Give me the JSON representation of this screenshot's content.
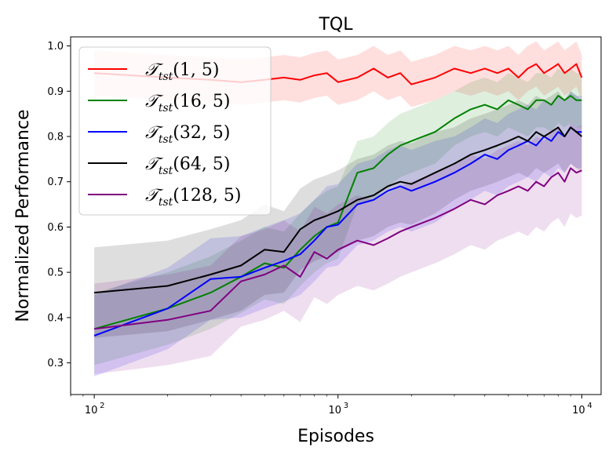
{
  "chart_data": {
    "type": "line",
    "title": "TQL",
    "xlabel": "Episodes",
    "ylabel": "Normalized Performance",
    "xscale": "log",
    "xlim": [
      80,
      12000
    ],
    "ylim": [
      0.23,
      1.02
    ],
    "yticks": [
      0.3,
      0.4,
      0.5,
      0.6,
      0.7,
      0.8,
      0.9,
      1.0
    ],
    "ytick_labels": [
      "0.3",
      "0.4",
      "0.5",
      "0.6",
      "0.7",
      "0.8",
      "0.9",
      "1.0"
    ],
    "xticks": [
      {
        "value": 100,
        "base": "10",
        "exp": "2"
      },
      {
        "value": 1000,
        "base": "10",
        "exp": "3"
      },
      {
        "value": 10000,
        "base": "10",
        "exp": "4"
      }
    ],
    "legend_position": "top-left",
    "x": [
      100,
      200,
      300,
      400,
      500,
      600,
      700,
      800,
      900,
      1000,
      1200,
      1400,
      1600,
      1800,
      2000,
      2500,
      3000,
      3500,
      4000,
      4500,
      5000,
      5500,
      6000,
      6500,
      7000,
      7500,
      8000,
      8500,
      9000,
      9500,
      10000
    ],
    "series": [
      {
        "name": "T_tst(1,5)",
        "label_main": "𝒯",
        "label_sub": "tst",
        "label_args": "(1, 5)",
        "color": "#ff0000",
        "values": [
          0.94,
          0.93,
          0.925,
          0.92,
          0.925,
          0.93,
          0.925,
          0.935,
          0.94,
          0.92,
          0.93,
          0.95,
          0.93,
          0.94,
          0.915,
          0.93,
          0.95,
          0.94,
          0.95,
          0.94,
          0.95,
          0.93,
          0.95,
          0.96,
          0.94,
          0.95,
          0.96,
          0.94,
          0.95,
          0.96,
          0.93
        ],
        "band": [
          0.05,
          0.05,
          0.05,
          0.05,
          0.05,
          0.05,
          0.05,
          0.05,
          0.05,
          0.05,
          0.05,
          0.05,
          0.05,
          0.05,
          0.05,
          0.05,
          0.05,
          0.05,
          0.05,
          0.05,
          0.05,
          0.05,
          0.05,
          0.05,
          0.05,
          0.05,
          0.05,
          0.05,
          0.05,
          0.05,
          0.05
        ]
      },
      {
        "name": "T_tst(16,5)",
        "label_main": "𝒯",
        "label_sub": "tst",
        "label_args": "(16, 5)",
        "color": "#008000",
        "values": [
          0.375,
          0.42,
          0.455,
          0.49,
          0.52,
          0.51,
          0.55,
          0.58,
          0.6,
          0.61,
          0.72,
          0.73,
          0.76,
          0.78,
          0.79,
          0.81,
          0.84,
          0.86,
          0.87,
          0.86,
          0.88,
          0.87,
          0.86,
          0.88,
          0.88,
          0.87,
          0.89,
          0.88,
          0.89,
          0.88,
          0.88
        ],
        "band": [
          0.08,
          0.08,
          0.08,
          0.08,
          0.08,
          0.08,
          0.08,
          0.08,
          0.08,
          0.08,
          0.07,
          0.07,
          0.07,
          0.07,
          0.07,
          0.07,
          0.06,
          0.06,
          0.06,
          0.06,
          0.06,
          0.06,
          0.06,
          0.06,
          0.06,
          0.06,
          0.06,
          0.06,
          0.06,
          0.06,
          0.06
        ]
      },
      {
        "name": "T_tst(32,5)",
        "label_main": "𝒯",
        "label_sub": "tst",
        "label_args": "(32, 5)",
        "color": "#0000ff",
        "values": [
          0.36,
          0.42,
          0.485,
          0.49,
          0.51,
          0.525,
          0.54,
          0.57,
          0.6,
          0.605,
          0.65,
          0.66,
          0.68,
          0.69,
          0.68,
          0.7,
          0.72,
          0.74,
          0.76,
          0.75,
          0.77,
          0.78,
          0.79,
          0.78,
          0.8,
          0.79,
          0.81,
          0.8,
          0.82,
          0.81,
          0.81
        ],
        "band": [
          0.09,
          0.09,
          0.09,
          0.09,
          0.09,
          0.09,
          0.09,
          0.09,
          0.09,
          0.09,
          0.09,
          0.09,
          0.09,
          0.09,
          0.09,
          0.09,
          0.08,
          0.08,
          0.08,
          0.08,
          0.08,
          0.08,
          0.08,
          0.08,
          0.08,
          0.08,
          0.08,
          0.08,
          0.08,
          0.08,
          0.08
        ]
      },
      {
        "name": "T_tst(64,5)",
        "label_main": "𝒯",
        "label_sub": "tst",
        "label_args": "(64, 5)",
        "color": "#000000",
        "values": [
          0.455,
          0.47,
          0.495,
          0.515,
          0.55,
          0.545,
          0.595,
          0.615,
          0.625,
          0.635,
          0.66,
          0.67,
          0.69,
          0.7,
          0.695,
          0.72,
          0.74,
          0.76,
          0.77,
          0.78,
          0.79,
          0.8,
          0.79,
          0.81,
          0.8,
          0.81,
          0.82,
          0.8,
          0.82,
          0.81,
          0.8
        ],
        "band": [
          0.1,
          0.1,
          0.1,
          0.1,
          0.1,
          0.09,
          0.09,
          0.09,
          0.09,
          0.09,
          0.09,
          0.09,
          0.09,
          0.09,
          0.09,
          0.09,
          0.08,
          0.08,
          0.08,
          0.08,
          0.08,
          0.08,
          0.08,
          0.08,
          0.08,
          0.08,
          0.08,
          0.08,
          0.08,
          0.08,
          0.08
        ]
      },
      {
        "name": "T_tst(128,5)",
        "label_main": "𝒯",
        "label_sub": "tst",
        "label_args": "(128, 5)",
        "color": "#800080",
        "values": [
          0.375,
          0.395,
          0.415,
          0.48,
          0.495,
          0.515,
          0.49,
          0.545,
          0.53,
          0.55,
          0.57,
          0.56,
          0.575,
          0.59,
          0.6,
          0.62,
          0.64,
          0.66,
          0.65,
          0.67,
          0.68,
          0.69,
          0.68,
          0.7,
          0.69,
          0.71,
          0.72,
          0.7,
          0.73,
          0.72,
          0.725
        ],
        "band": [
          0.1,
          0.1,
          0.1,
          0.1,
          0.1,
          0.1,
          0.1,
          0.1,
          0.1,
          0.1,
          0.1,
          0.1,
          0.1,
          0.1,
          0.1,
          0.1,
          0.1,
          0.1,
          0.1,
          0.1,
          0.1,
          0.1,
          0.1,
          0.1,
          0.1,
          0.1,
          0.1,
          0.1,
          0.1,
          0.1,
          0.1
        ]
      }
    ]
  }
}
